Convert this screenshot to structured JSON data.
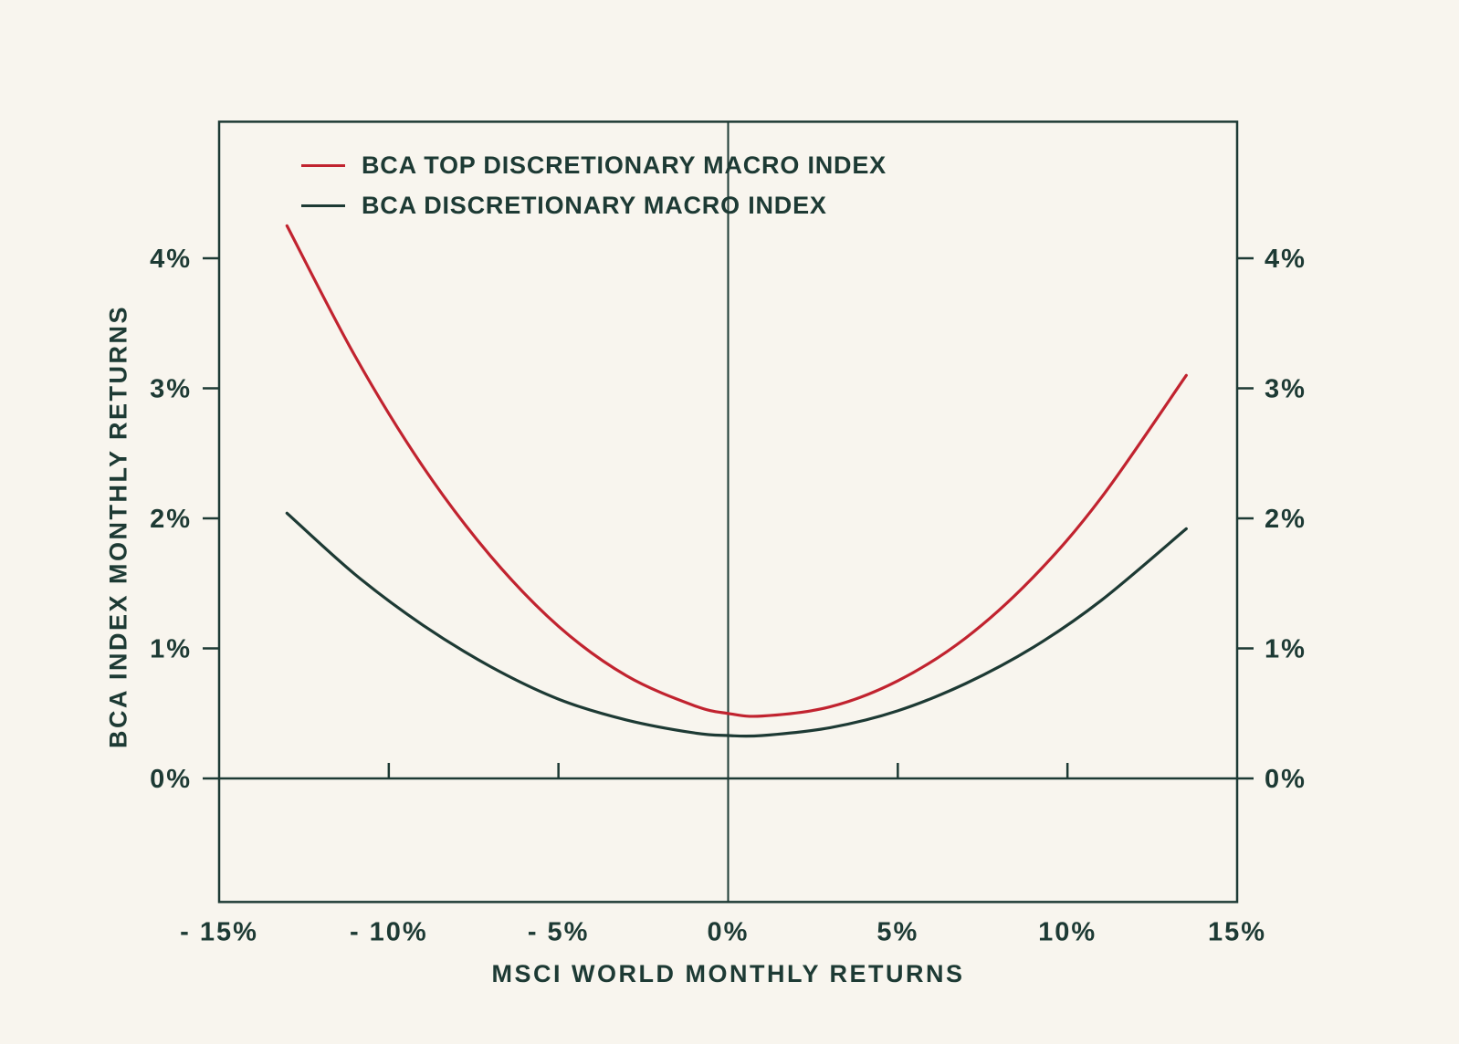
{
  "colors": {
    "background": "#f8f5ee",
    "dark": "#1d3a34",
    "red": "#c1232f"
  },
  "chart_data": {
    "type": "line",
    "title": "",
    "xlabel": "MSCI WORLD MONTHLY RETURNS",
    "ylabel": "BCA INDEX MONTHLY RETURNS",
    "xlim": [
      -15,
      15
    ],
    "ylim": [
      -0.95,
      5.05
    ],
    "x_ticks": [
      -15,
      -10,
      -5,
      0,
      5,
      10,
      15
    ],
    "x_tick_labels": [
      "- 15%",
      "- 10%",
      "- 5%",
      "0%",
      "5%",
      "10%",
      "15%"
    ],
    "zero_line_ticks": [
      -10,
      -5,
      5,
      10
    ],
    "y_ticks": [
      0,
      1,
      2,
      3,
      4
    ],
    "y_tick_labels": [
      "0%",
      "1%",
      "2%",
      "3%",
      "4%"
    ],
    "grid": false,
    "legend_position": "inside-top-left",
    "series": [
      {
        "name": "BCA TOP DISCRETIONARY MACRO INDEX",
        "color": "#c1232f",
        "x": [
          -13,
          -11,
          -9,
          -7,
          -5,
          -3,
          -1,
          0,
          1,
          3,
          5,
          7,
          9,
          11,
          13.5
        ],
        "y": [
          4.25,
          3.25,
          2.4,
          1.71,
          1.17,
          0.79,
          0.56,
          0.5,
          0.48,
          0.55,
          0.75,
          1.08,
          1.55,
          2.16,
          3.1
        ]
      },
      {
        "name": "BCA DISCRETIONARY MACRO INDEX",
        "color": "#1d3a34",
        "x": [
          -13,
          -11,
          -9,
          -7,
          -5,
          -3,
          -1,
          0,
          1,
          3,
          5,
          7,
          9,
          11,
          13.5
        ],
        "y": [
          2.04,
          1.57,
          1.18,
          0.86,
          0.61,
          0.45,
          0.35,
          0.33,
          0.33,
          0.39,
          0.52,
          0.73,
          1.01,
          1.37,
          1.92
        ]
      }
    ]
  }
}
